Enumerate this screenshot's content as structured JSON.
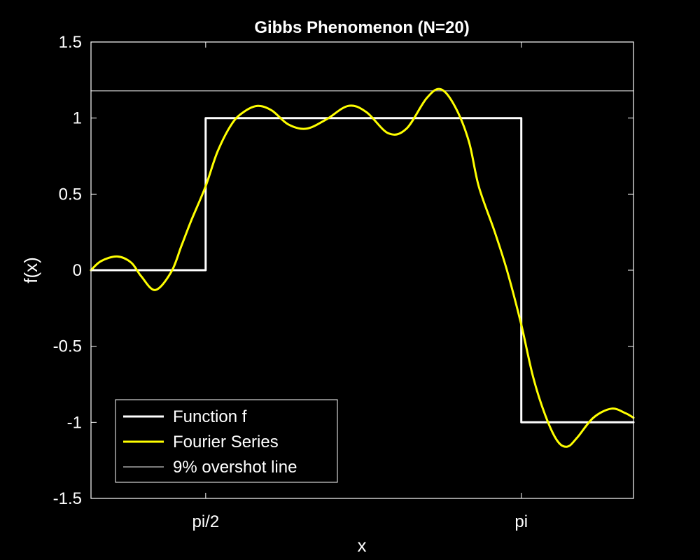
{
  "chart_data": {
    "type": "line",
    "title": "Gibbs Phenomenon (N=20)",
    "xlabel": "x",
    "ylabel": "f(x)",
    "xlim": [
      1.0,
      3.7
    ],
    "ylim": [
      -1.5,
      1.5
    ],
    "grid": false,
    "legend_location": "bottom-left",
    "x_ticks": [
      {
        "value": 1.5708,
        "label": "pi/2"
      },
      {
        "value": 3.1416,
        "label": "pi"
      }
    ],
    "y_ticks": [
      {
        "value": 1.5,
        "label": "1.5"
      },
      {
        "value": 1,
        "label": "1"
      },
      {
        "value": 0.5,
        "label": "0.5"
      },
      {
        "value": 0,
        "label": "0"
      },
      {
        "value": -0.5,
        "label": "-0.5"
      },
      {
        "value": -1,
        "label": "-1"
      },
      {
        "value": -1.5,
        "label": "-1.5"
      }
    ],
    "series": [
      {
        "name": "Function f",
        "color": "#ffffff",
        "x": [
          1.0,
          1.5708,
          1.5708,
          3.1416,
          3.1416,
          3.7
        ],
        "y": [
          0,
          0,
          1,
          1,
          -1,
          -1
        ]
      },
      {
        "name": "Fourier Series",
        "color": "#ffff00",
        "x": [
          1.0,
          1.05,
          1.13,
          1.2,
          1.25,
          1.32,
          1.4,
          1.45,
          1.5,
          1.57,
          1.63,
          1.7,
          1.76,
          1.83,
          1.9,
          1.98,
          2.07,
          2.17,
          2.28,
          2.37,
          2.48,
          2.57,
          2.67,
          2.74,
          2.81,
          2.88,
          2.93,
          3.01,
          3.07,
          3.14,
          3.2,
          3.26,
          3.32,
          3.37,
          3.42,
          3.5,
          3.59,
          3.66,
          3.7
        ],
        "y": [
          0,
          0.06,
          0.09,
          0.05,
          -0.04,
          -0.13,
          -0.01,
          0.16,
          0.33,
          0.55,
          0.78,
          0.96,
          1.04,
          1.08,
          1.05,
          0.96,
          0.93,
          0.99,
          1.08,
          1.04,
          0.9,
          0.93,
          1.13,
          1.19,
          1.08,
          0.85,
          0.55,
          0.25,
          0.0,
          -0.35,
          -0.7,
          -0.95,
          -1.12,
          -1.16,
          -1.1,
          -0.97,
          -0.91,
          -0.94,
          -0.97
        ]
      },
      {
        "name": "9% overshot line",
        "color": "#a6a6a6",
        "x": [
          1.0,
          3.7
        ],
        "y": [
          1.179,
          1.179
        ]
      }
    ]
  }
}
